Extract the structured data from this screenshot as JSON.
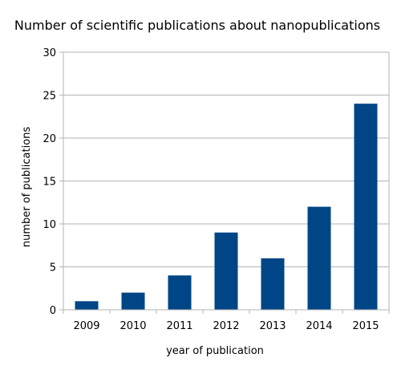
{
  "chart_data": {
    "type": "bar",
    "title": "Number of scientific publications about nanopublications",
    "xlabel": "year of publication",
    "ylabel": "number of publications",
    "categories": [
      "2009",
      "2010",
      "2011",
      "2012",
      "2013",
      "2014",
      "2015"
    ],
    "values": [
      1,
      2,
      4,
      9,
      6,
      12,
      24
    ],
    "ylim": [
      0,
      30
    ],
    "yticks": [
      0,
      5,
      10,
      15,
      20,
      25,
      30
    ],
    "grid": true,
    "legend": "none",
    "bar_color": "#004586"
  }
}
